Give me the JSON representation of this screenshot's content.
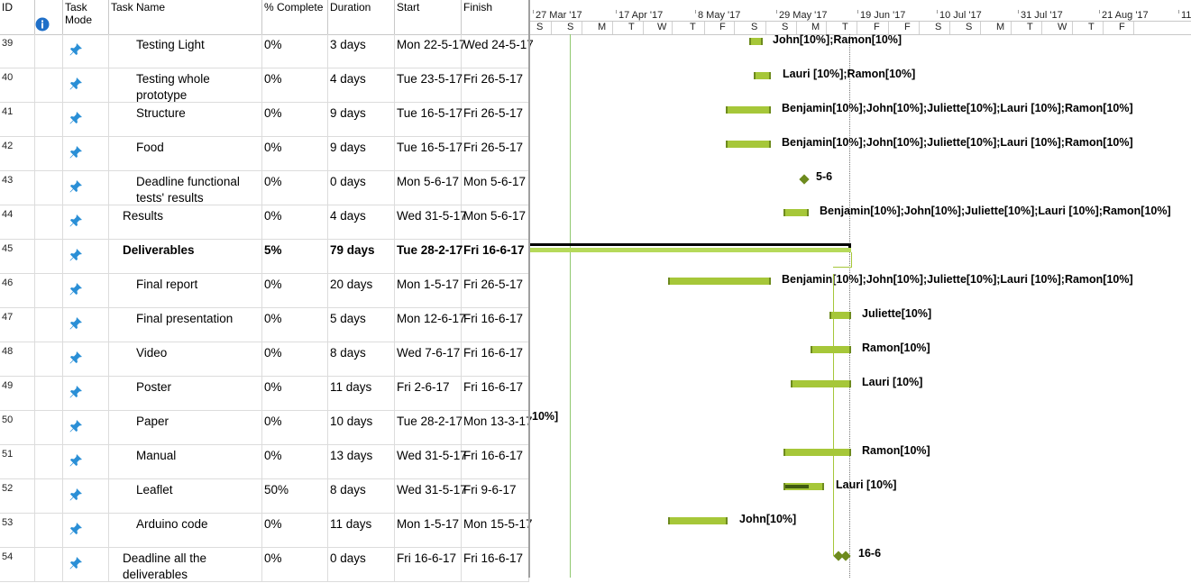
{
  "columns": {
    "id": "ID",
    "mode": "Task\nMode",
    "name": "Task Name",
    "complete": "% Complete",
    "duration": "Duration",
    "start": "Start",
    "finish": "Finish"
  },
  "icons": {
    "info": "info-icon",
    "mode": "pin-icon"
  },
  "colors": {
    "bar": "#a6c739",
    "bar_edge": "#6d8a1e",
    "progress": "#3f5a10",
    "summary": "#000000",
    "timeline_line": "#90c870"
  },
  "timescale": {
    "top": [
      "27 Mar '17",
      "17 Apr '17",
      "8 May '17",
      "29 May '17",
      "19 Jun '17",
      "10 Jul '17",
      "31 Jul '17",
      "21 Aug '17",
      "11"
    ],
    "days": [
      "S",
      "S",
      "M",
      "T",
      "W",
      "T",
      "F",
      "S",
      "S",
      "M",
      "T",
      "F",
      "F",
      "S",
      "S",
      "M",
      "T",
      "W",
      "T",
      "F"
    ]
  },
  "rows": [
    {
      "id": "39",
      "name": "Testing Light",
      "complete": "0%",
      "duration": "3 days",
      "start": "Mon 22-5-17",
      "finish": "Wed 24-5-17",
      "label": "John[10%];Ramon[10%]"
    },
    {
      "id": "40",
      "name": "Testing whole prototype",
      "complete": "0%",
      "duration": "4 days",
      "start": "Tue 23-5-17",
      "finish": "Fri 26-5-17",
      "label": "Lauri [10%];Ramon[10%]"
    },
    {
      "id": "41",
      "name": "Structure",
      "complete": "0%",
      "duration": "9 days",
      "start": "Tue 16-5-17",
      "finish": "Fri 26-5-17",
      "label": "Benjamin[10%];John[10%];Juliette[10%];Lauri [10%];Ramon[10%]"
    },
    {
      "id": "42",
      "name": "Food",
      "complete": "0%",
      "duration": "9 days",
      "start": "Tue 16-5-17",
      "finish": "Fri 26-5-17",
      "label": "Benjamin[10%];John[10%];Juliette[10%];Lauri [10%];Ramon[10%]"
    },
    {
      "id": "43",
      "name": "Deadline functional tests' results",
      "complete": "0%",
      "duration": "0 days",
      "start": "Mon 5-6-17",
      "finish": "Mon 5-6-17",
      "label": "5-6"
    },
    {
      "id": "44",
      "name": "Results",
      "complete": "0%",
      "duration": "4 days",
      "start": "Wed 31-5-17",
      "finish": "Mon 5-6-17",
      "label": "Benjamin[10%];John[10%];Juliette[10%];Lauri [10%];Ramon[10%]"
    },
    {
      "id": "45",
      "name": "Deliverables",
      "complete": "5%",
      "duration": "79 days",
      "start": "Tue 28-2-17",
      "finish": "Fri 16-6-17",
      "label": ""
    },
    {
      "id": "46",
      "name": "Final report",
      "complete": "0%",
      "duration": "20 days",
      "start": "Mon 1-5-17",
      "finish": "Fri 26-5-17",
      "label": "Benjamin[10%];John[10%];Juliette[10%];Lauri [10%];Ramon[10%]"
    },
    {
      "id": "47",
      "name": "Final presentation",
      "complete": "0%",
      "duration": "5 days",
      "start": "Mon 12-6-17",
      "finish": "Fri 16-6-17",
      "label": "Juliette[10%]"
    },
    {
      "id": "48",
      "name": "Video",
      "complete": "0%",
      "duration": "8 days",
      "start": "Wed 7-6-17",
      "finish": "Fri 16-6-17",
      "label": "Ramon[10%]"
    },
    {
      "id": "49",
      "name": "Poster",
      "complete": "0%",
      "duration": "11 days",
      "start": "Fri 2-6-17",
      "finish": "Fri 16-6-17",
      "label": "Lauri [10%]"
    },
    {
      "id": "50",
      "name": "Paper",
      "complete": "0%",
      "duration": "10 days",
      "start": "Tue 28-2-17",
      "finish": "Mon 13-3-17",
      "label": "10%]"
    },
    {
      "id": "51",
      "name": "Manual",
      "complete": "0%",
      "duration": "13 days",
      "start": "Wed 31-5-17",
      "finish": "Fri 16-6-17",
      "label": "Ramon[10%]"
    },
    {
      "id": "52",
      "name": "Leaflet",
      "complete": "50%",
      "duration": "8 days",
      "start": "Wed 31-5-17",
      "finish": "Fri 9-6-17",
      "label": "Lauri [10%]"
    },
    {
      "id": "53",
      "name": "Arduino code",
      "complete": "0%",
      "duration": "11 days",
      "start": "Mon 1-5-17",
      "finish": "Mon 15-5-17",
      "label": "John[10%]"
    },
    {
      "id": "54",
      "name": "Deadline all the deliverables",
      "complete": "0%",
      "duration": "0 days",
      "start": "Fri 16-6-17",
      "finish": "Fri 16-6-17",
      "label": "16-6"
    }
  ]
}
